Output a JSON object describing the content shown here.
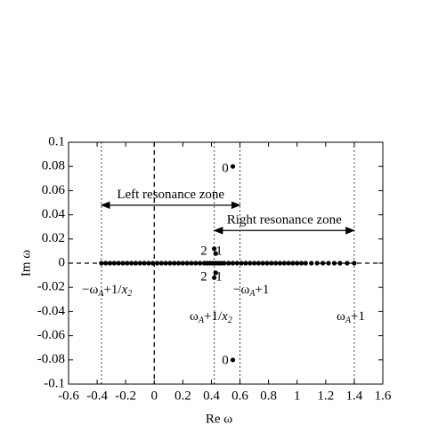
{
  "chart_data": {
    "type": "scatter",
    "xlabel": "Re ω",
    "ylabel": "Im ω",
    "xlim": [
      -0.6,
      1.6
    ],
    "ylim": [
      -0.1,
      0.1
    ],
    "xticks": [
      -0.6,
      -0.4,
      -0.2,
      0,
      0.2,
      0.4,
      0.6,
      0.8,
      1,
      1.2,
      1.4,
      1.6
    ],
    "yticks": [
      0.1,
      0.08,
      0.06,
      0.04,
      0.02,
      0,
      -0.02,
      -0.04,
      -0.06,
      -0.08,
      -0.1
    ],
    "series": [
      {
        "color": "#000000",
        "x": [
          -0.37,
          -0.34,
          -0.31,
          -0.28,
          -0.25,
          -0.22,
          -0.19,
          -0.16,
          -0.13,
          -0.1,
          -0.07,
          -0.04,
          -0.01,
          0.02,
          0.05,
          0.08,
          0.11,
          0.14,
          0.17,
          0.2,
          0.23,
          0.26,
          0.29,
          0.32,
          0.35,
          0.37,
          0.39,
          0.41,
          0.43,
          0.45,
          0.47,
          0.49,
          0.52,
          0.55,
          0.58,
          0.61,
          0.64,
          0.67,
          0.7,
          0.73,
          0.76,
          0.79,
          0.82,
          0.85,
          0.88,
          0.91,
          0.94,
          0.97,
          1,
          1.03,
          1.06,
          1.1,
          1.14,
          1.18,
          1.22,
          1.26,
          1.3,
          1.35,
          1.4
        ],
        "values": [
          0,
          0,
          0,
          0,
          0,
          0,
          0,
          0,
          0,
          0,
          0,
          0,
          0,
          0,
          0,
          0,
          0,
          0,
          0,
          0,
          0,
          0,
          0,
          0,
          0,
          0,
          0,
          0,
          0,
          0,
          0,
          0,
          0,
          0,
          0,
          0,
          0,
          0,
          0,
          0,
          0,
          0,
          0,
          0,
          0,
          0,
          0,
          0,
          0,
          0,
          0,
          0,
          0,
          0,
          0,
          0,
          0,
          0,
          0
        ]
      },
      {
        "color": "#000000",
        "x": [
          0.55,
          0.55,
          0.42,
          0.43,
          0.42,
          0.43
        ],
        "values": [
          0.08,
          -0.08,
          0.012,
          0.008,
          -0.012,
          -0.008
        ]
      }
    ],
    "reference_lines": [
      {
        "x": 0,
        "style": "dashed"
      },
      {
        "x": -0.37,
        "style": "dotted"
      },
      {
        "x": 0.42,
        "style": "dotted"
      },
      {
        "x": 0.6,
        "style": "dotted"
      },
      {
        "x": 1.4,
        "style": "dotted"
      }
    ],
    "zero_line": "dashed",
    "zones": [
      {
        "label": "Left resonance zone",
        "x": [
          -0.37,
          0.6
        ],
        "y": 0.048
      },
      {
        "label": "Right resonance zone",
        "x": [
          0.42,
          1.4
        ],
        "y": 0.027
      }
    ],
    "point_labels": [
      "0",
      "0",
      "2",
      "1",
      "2",
      "1"
    ],
    "line_labels": [
      {
        "parts": [
          {
            "text": "−ω"
          },
          {
            "text": "A",
            "style": "sub"
          },
          {
            "text": "+1/"
          },
          {
            "text": "x",
            "style": "italic"
          },
          {
            "text": "2",
            "style": "sub"
          }
        ]
      },
      {
        "parts": [
          {
            "text": "−ω"
          },
          {
            "text": "A",
            "style": "sub"
          },
          {
            "text": "+1"
          }
        ]
      },
      {
        "parts": [
          {
            "text": "ω"
          },
          {
            "text": "A",
            "style": "sub"
          },
          {
            "text": "+1/"
          },
          {
            "text": "x",
            "style": "italic"
          },
          {
            "text": "2",
            "style": "sub"
          }
        ]
      },
      {
        "parts": [
          {
            "text": "ω"
          },
          {
            "text": "A",
            "style": "sub"
          },
          {
            "text": "+1"
          }
        ]
      }
    ]
  }
}
